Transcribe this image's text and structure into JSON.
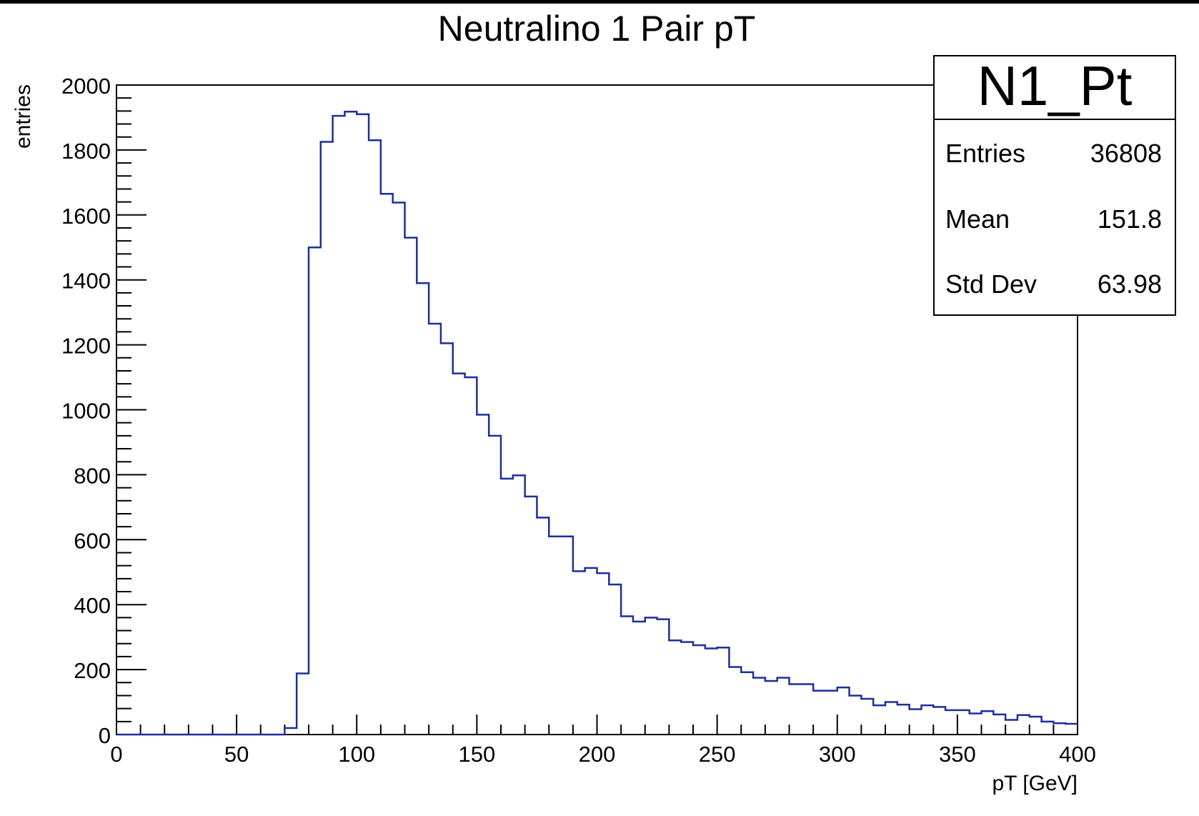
{
  "chart_data": {
    "type": "histogram",
    "title": "Neutralino 1 Pair pT",
    "xlabel": "pT [GeV]",
    "ylabel": "entries",
    "xlim": [
      0,
      400
    ],
    "ylim": [
      0,
      2000
    ],
    "bin_width": 5,
    "x_ticks": [
      "0",
      "50",
      "100",
      "150",
      "200",
      "250",
      "300",
      "350",
      "400"
    ],
    "y_ticks": [
      "0",
      "200",
      "400",
      "600",
      "800",
      "1000",
      "1200",
      "1400",
      "1600",
      "1800",
      "2000"
    ],
    "grid": false,
    "line_color": "#1c2e9e",
    "series": [
      {
        "values": [
          0,
          0,
          0,
          0,
          0,
          0,
          0,
          0,
          0,
          0,
          0,
          0,
          0,
          0,
          20,
          188,
          1500,
          1825,
          1905,
          1918,
          1910,
          1830,
          1665,
          1638,
          1530,
          1390,
          1265,
          1205,
          1112,
          1100,
          985,
          920,
          788,
          798,
          733,
          668,
          610,
          610,
          503,
          513,
          497,
          462,
          364,
          348,
          360,
          355,
          290,
          285,
          275,
          265,
          268,
          208,
          192,
          175,
          165,
          175,
          155,
          155,
          135,
          135,
          145,
          120,
          110,
          90,
          100,
          92,
          78,
          90,
          85,
          75,
          75,
          65,
          72,
          62,
          45,
          60,
          55,
          40,
          35,
          33
        ]
      }
    ]
  },
  "stats_box": {
    "name": "N1_Pt",
    "rows": [
      {
        "label": "Entries",
        "value": "36808"
      },
      {
        "label": "Mean",
        "value": "151.8"
      },
      {
        "label": "Std Dev",
        "value": "63.98"
      }
    ]
  }
}
